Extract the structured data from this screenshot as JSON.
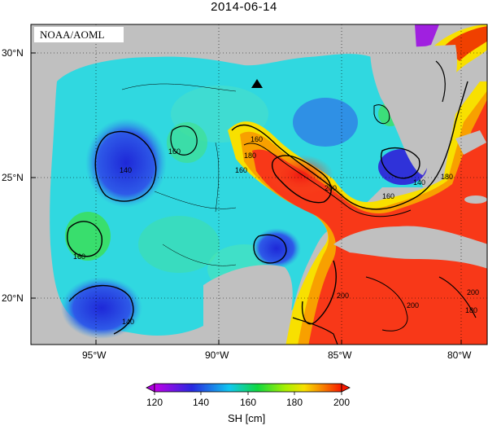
{
  "title": "2014-06-14",
  "credit": "NOAA/AOML",
  "lat_labels": [
    "30°N",
    "25°N",
    "20°N"
  ],
  "lon_labels": [
    "95°W",
    "90°W",
    "85°W",
    "80°W"
  ],
  "contour_labels": [
    "160",
    "180",
    "160",
    "140",
    "160",
    "200",
    "160",
    "180",
    "140",
    "160",
    "140",
    "200",
    "200",
    "180",
    "200"
  ],
  "colorbar": {
    "ticks": [
      "120",
      "140",
      "160",
      "180",
      "200"
    ],
    "label": "SH [cm]",
    "colors": [
      "#b000e0",
      "#2a20dc",
      "#00c8e8",
      "#18d020",
      "#f0e000",
      "#f81c00"
    ]
  },
  "marker": "triangle",
  "colors": {
    "land": "#c0c0c0",
    "ocean_warm": "#f82000",
    "ocean_cool": "#30d8e0"
  }
}
